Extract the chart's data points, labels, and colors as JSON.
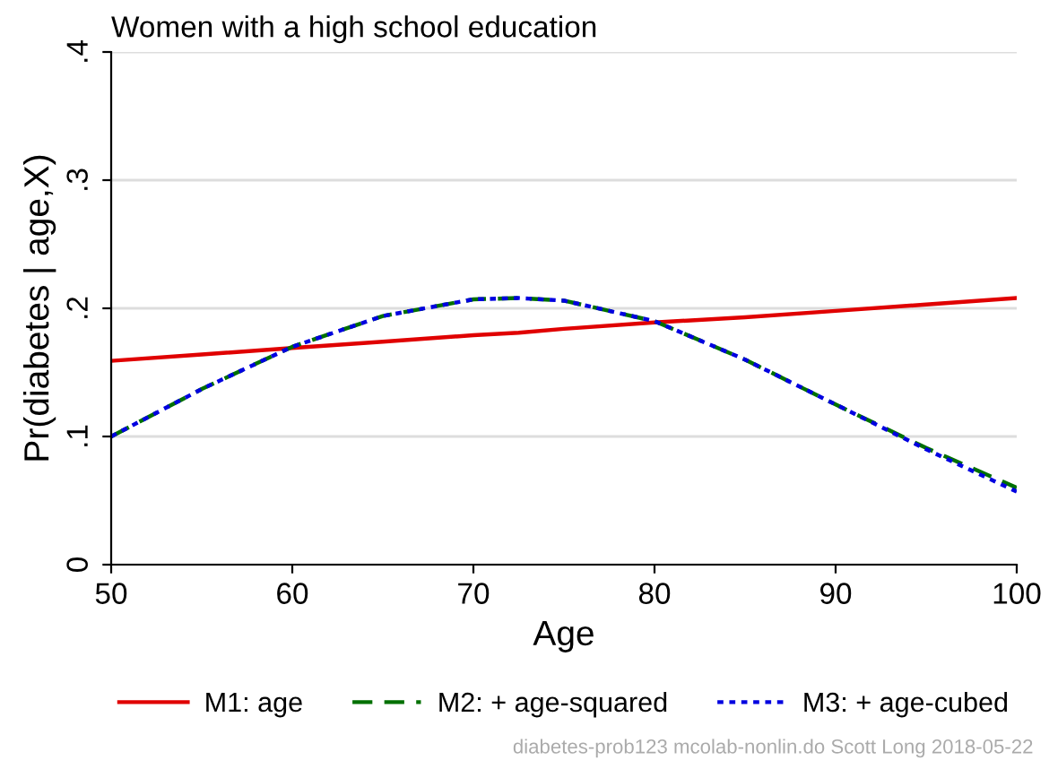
{
  "chart_data": {
    "type": "line",
    "title": "Women with a high school education",
    "xlabel": "Age",
    "ylabel": "Pr(diabetes | age,X)",
    "x": [
      50,
      55,
      60,
      65,
      70,
      72.5,
      75,
      80,
      85,
      90,
      95,
      100
    ],
    "series": [
      {
        "name": "M1: age",
        "color": "#e00000",
        "line_style": "solid",
        "values": [
          0.159,
          0.164,
          0.169,
          0.174,
          0.179,
          0.181,
          0.184,
          0.189,
          0.193,
          0.198,
          0.203,
          0.208
        ]
      },
      {
        "name": "M2: + age-squared",
        "color": "#007000",
        "line_style": "dashed",
        "values": [
          0.1,
          0.137,
          0.17,
          0.194,
          0.207,
          0.208,
          0.206,
          0.19,
          0.16,
          0.125,
          0.091,
          0.06
        ]
      },
      {
        "name": "M3: + age-cubed",
        "color": "#0000e0",
        "line_style": "dotted",
        "values": [
          0.1,
          0.137,
          0.17,
          0.194,
          0.207,
          0.208,
          0.206,
          0.19,
          0.16,
          0.125,
          0.09,
          0.057
        ]
      }
    ],
    "xlim": [
      50,
      100
    ],
    "xticks": [
      50,
      60,
      70,
      80,
      90,
      100
    ],
    "ylim": [
      0,
      0.4
    ],
    "yticks": [
      {
        "value": 0,
        "label": "0"
      },
      {
        "value": 0.1,
        "label": ".1"
      },
      {
        "value": 0.2,
        "label": ".2"
      },
      {
        "value": 0.3,
        "label": ".3"
      },
      {
        "value": 0.4,
        "label": ".4"
      }
    ],
    "grid": "y",
    "legend": "bottom",
    "marker": "none",
    "annotations": [
      "diabetes-prob123 mcolab-nonlin.do Scott Long 2018-05-22"
    ]
  }
}
